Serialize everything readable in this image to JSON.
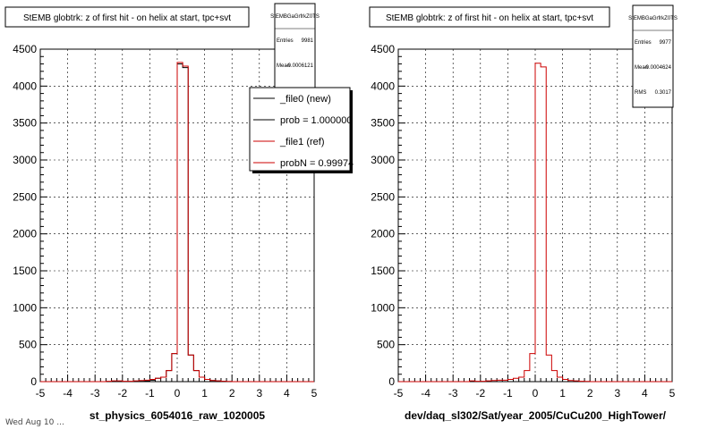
{
  "page": {
    "footnote": "Wed Aug 10 ..."
  },
  "chart_data": [
    {
      "type": "histogram",
      "title": "StEMB globtrk: z of first hit - on helix at start, tpc+svt",
      "xlabel": "st_physics_6054016_raw_1020005",
      "ylabel": "",
      "xlim": [
        -5,
        5
      ],
      "ylim": [
        0,
        4500
      ],
      "xticks": [
        -5,
        -4,
        -3,
        -2,
        -1,
        0,
        1,
        2,
        3,
        4,
        5
      ],
      "yticks": [
        0,
        500,
        1000,
        1500,
        2000,
        2500,
        3000,
        3500,
        4000,
        4500
      ],
      "grid": true,
      "stats": {
        "name": "StEMBGaGrfrkZ0TS",
        "entries_label": "Entries",
        "entries": "9981",
        "mean_label": "Mean",
        "mean": "-0.0006121"
      },
      "legend": {
        "position": "top-right",
        "entries": [
          {
            "label": "_file0 (new)",
            "color": "#000000"
          },
          {
            "label": "prob = 1.000000",
            "color": "#000000"
          },
          {
            "label": "_file1 (ref)",
            "color": "#cc0000"
          },
          {
            "label": "probN = 0.99974",
            "color": "#cc0000"
          }
        ]
      },
      "bin_edges": [
        -5.0,
        -4.8,
        -4.6,
        -4.4,
        -4.2,
        -4.0,
        -3.8,
        -3.6,
        -3.4,
        -3.2,
        -3.0,
        -2.8,
        -2.6,
        -2.4,
        -2.2,
        -2.0,
        -1.8,
        -1.6,
        -1.4,
        -1.2,
        -1.0,
        -0.8,
        -0.6,
        -0.4,
        -0.2,
        0.0,
        0.2,
        0.4,
        0.6,
        0.8,
        1.0,
        1.2,
        1.4,
        1.6,
        1.8,
        2.0,
        2.2,
        2.4,
        2.6,
        2.8,
        3.0,
        3.2,
        3.4,
        3.6,
        3.8,
        4.0,
        4.2,
        4.4,
        4.6,
        4.8,
        5.0
      ],
      "series": [
        {
          "color": "#000000",
          "values": [
            0,
            0,
            0,
            0,
            0,
            0,
            0,
            0,
            0,
            0,
            0,
            0,
            0,
            0,
            0,
            0,
            0,
            0,
            5,
            10,
            20,
            45,
            60,
            150,
            380,
            4300,
            4250,
            360,
            150,
            60,
            30,
            15,
            10,
            5,
            0,
            0,
            0,
            0,
            0,
            0,
            0,
            0,
            0,
            0,
            0,
            0,
            0,
            0,
            0,
            0
          ]
        },
        {
          "color": "#cc0000",
          "values": [
            0,
            0,
            0,
            0,
            0,
            0,
            0,
            0,
            0,
            0,
            0,
            0,
            5,
            10,
            10,
            5,
            5,
            10,
            15,
            20,
            30,
            45,
            60,
            150,
            380,
            4320,
            4270,
            360,
            150,
            60,
            30,
            15,
            10,
            5,
            3,
            0,
            0,
            0,
            0,
            0,
            0,
            0,
            0,
            0,
            0,
            0,
            0,
            0,
            0,
            0
          ]
        }
      ]
    },
    {
      "type": "histogram",
      "title": "StEMB globtrk: z of first hit - on helix at start, tpc+svt",
      "xlabel": "dev/daq_sl302/Sat/year_2005/CuCu200_HighTower/",
      "ylabel": "",
      "xlim": [
        -5,
        5
      ],
      "ylim": [
        0,
        4500
      ],
      "xticks": [
        -5,
        -4,
        -3,
        -2,
        -1,
        0,
        1,
        2,
        3,
        4,
        5
      ],
      "yticks": [
        0,
        500,
        1000,
        1500,
        2000,
        2500,
        3000,
        3500,
        4000,
        4500
      ],
      "grid": true,
      "stats": {
        "name": "StEMBGaGrfrkZ0TS",
        "entries_label": "Entries",
        "entries": "9977",
        "mean_label": "Mean",
        "mean": "-0.0004624",
        "rms_label": "RMS",
        "rms": "0.3017"
      },
      "bin_edges": [
        -5.0,
        -4.8,
        -4.6,
        -4.4,
        -4.2,
        -4.0,
        -3.8,
        -3.6,
        -3.4,
        -3.2,
        -3.0,
        -2.8,
        -2.6,
        -2.4,
        -2.2,
        -2.0,
        -1.8,
        -1.6,
        -1.4,
        -1.2,
        -1.0,
        -0.8,
        -0.6,
        -0.4,
        -0.2,
        0.0,
        0.2,
        0.4,
        0.6,
        0.8,
        1.0,
        1.2,
        1.4,
        1.6,
        1.8,
        2.0,
        2.2,
        2.4,
        2.6,
        2.8,
        3.0,
        3.2,
        3.4,
        3.6,
        3.8,
        4.0,
        4.2,
        4.4,
        4.6,
        4.8,
        5.0
      ],
      "series": [
        {
          "color": "#cc0000",
          "values": [
            0,
            0,
            0,
            0,
            0,
            0,
            0,
            0,
            0,
            0,
            0,
            0,
            0,
            10,
            5,
            5,
            10,
            15,
            20,
            20,
            30,
            45,
            60,
            150,
            380,
            4310,
            4260,
            360,
            150,
            60,
            30,
            15,
            10,
            5,
            3,
            0,
            0,
            0,
            0,
            0,
            0,
            0,
            0,
            0,
            0,
            0,
            0,
            0,
            0,
            0
          ]
        }
      ]
    }
  ]
}
